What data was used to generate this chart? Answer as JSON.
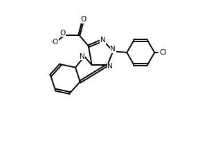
{
  "bg_color": "#ffffff",
  "line_color": "#000000",
  "lw": 1.4,
  "fs": 7.5,
  "fig_width": 3.15,
  "fig_height": 2.2,
  "dpi": 100,
  "xlim": [
    -2.0,
    5.5
  ],
  "ylim": [
    -3.5,
    2.8
  ]
}
